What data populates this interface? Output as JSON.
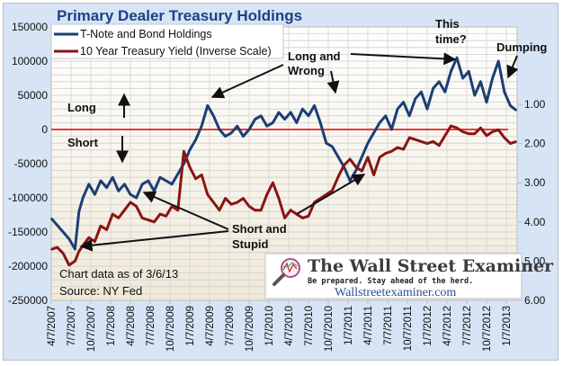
{
  "chart_data": {
    "type": "line",
    "title": "Primary Dealer Treasury Holdings",
    "legend": {
      "placement": "top-left",
      "entries": [
        {
          "name": "T-Note and Bond Holdings",
          "color": "#1b3f73",
          "axis": "left"
        },
        {
          "name": "10 Year Treasury Yield (Inverse Scale)",
          "color": "#8b1414",
          "axis": "right"
        }
      ]
    },
    "left_axis": {
      "ticks": [
        150000,
        100000,
        50000,
        0,
        -50000,
        -100000,
        -150000,
        -200000,
        -250000
      ],
      "range": [
        -250000,
        150000
      ]
    },
    "right_axis": {
      "inverted": true,
      "ticks": [
        "1.00",
        "2.00",
        "3.00",
        "4.00",
        "5.00",
        "6.00"
      ],
      "tick_values": [
        1,
        2,
        3,
        4,
        5,
        6
      ]
    },
    "x_tick_labels": [
      "4/7/2007",
      "7/7/2007",
      "10/7/2007",
      "1/7/2008",
      "4/7/2008",
      "7/7/2008",
      "10/7/2008",
      "1/7/2009",
      "4/7/2009",
      "7/7/2009",
      "10/7/2009",
      "1/7/2010",
      "4/7/2010",
      "7/7/2010",
      "10/7/2010",
      "1/7/2011",
      "4/7/2011",
      "7/7/2011",
      "10/7/2011",
      "1/7/2012",
      "4/7/2012",
      "7/7/2012",
      "10/7/2012",
      "1/7/2013"
    ],
    "grid": true,
    "zero_line_color": "#e83b3b",
    "series": [
      {
        "name": "T-Note and Bond Holdings",
        "x_quarters": [
          0,
          0.3,
          0.6,
          0.9,
          1.2,
          1.4,
          1.6,
          1.9,
          2.2,
          2.5,
          2.8,
          3.1,
          3.4,
          3.7,
          4.0,
          4.3,
          4.6,
          4.9,
          5.2,
          5.5,
          5.8,
          6.1,
          6.4,
          6.7,
          7.0,
          7.3,
          7.6,
          7.9,
          8.2,
          8.5,
          8.8,
          9.1,
          9.4,
          9.7,
          10.0,
          10.3,
          10.6,
          10.9,
          11.2,
          11.5,
          11.8,
          12.1,
          12.4,
          12.7,
          13.0,
          13.3,
          13.6,
          13.9,
          14.2,
          14.5,
          14.8,
          15.1,
          15.4,
          15.7,
          16.0,
          16.3,
          16.6,
          16.9,
          17.2,
          17.5,
          17.8,
          18.1,
          18.4,
          18.7,
          19.0,
          19.3,
          19.6,
          19.9,
          20.2,
          20.5,
          20.8,
          21.1,
          21.4,
          21.7,
          22.0,
          22.3,
          22.6,
          22.9,
          23.2,
          23.5
        ],
        "values": [
          -130000,
          -140000,
          -150000,
          -160000,
          -175000,
          -120000,
          -100000,
          -80000,
          -95000,
          -75000,
          -85000,
          -70000,
          -90000,
          -80000,
          -95000,
          -100000,
          -80000,
          -75000,
          -90000,
          -70000,
          -75000,
          -80000,
          -65000,
          -50000,
          -30000,
          -15000,
          5000,
          35000,
          20000,
          0,
          -10000,
          -5000,
          5000,
          -10000,
          0,
          15000,
          20000,
          5000,
          10000,
          25000,
          15000,
          25000,
          10000,
          30000,
          20000,
          35000,
          10000,
          -20000,
          -25000,
          -40000,
          -55000,
          -75000,
          -60000,
          -40000,
          -20000,
          -5000,
          10000,
          20000,
          0,
          30000,
          40000,
          20000,
          45000,
          55000,
          30000,
          60000,
          70000,
          55000,
          85000,
          105000,
          75000,
          85000,
          50000,
          70000,
          40000,
          75000,
          100000,
          55000,
          35000,
          28000
        ],
        "color": "#1b3f73"
      },
      {
        "name": "10 Year Treasury Yield (Inverse Scale)",
        "x_quarters": [
          0,
          0.3,
          0.6,
          0.9,
          1.2,
          1.4,
          1.6,
          1.9,
          2.2,
          2.5,
          2.8,
          3.1,
          3.4,
          3.7,
          4.0,
          4.3,
          4.6,
          4.9,
          5.2,
          5.5,
          5.8,
          6.1,
          6.4,
          6.7,
          7.0,
          7.3,
          7.6,
          7.9,
          8.2,
          8.5,
          8.8,
          9.1,
          9.4,
          9.7,
          10.0,
          10.3,
          10.6,
          10.9,
          11.2,
          11.5,
          11.8,
          12.1,
          12.4,
          12.7,
          13.0,
          13.3,
          13.6,
          13.9,
          14.2,
          14.5,
          14.8,
          15.1,
          15.4,
          15.7,
          16.0,
          16.3,
          16.6,
          16.9,
          17.2,
          17.5,
          17.8,
          18.1,
          18.4,
          18.7,
          19.0,
          19.3,
          19.6,
          19.9,
          20.2,
          20.5,
          20.8,
          21.1,
          21.4,
          21.7,
          22.0,
          22.3,
          22.6,
          22.9,
          23.2,
          23.5
        ],
        "values": [
          4.7,
          4.65,
          4.8,
          5.1,
          5.0,
          4.75,
          4.6,
          4.4,
          4.5,
          4.1,
          4.2,
          3.8,
          3.9,
          3.7,
          3.5,
          3.6,
          3.9,
          3.95,
          4.0,
          3.8,
          3.85,
          3.6,
          3.7,
          2.2,
          2.6,
          2.9,
          2.8,
          3.3,
          3.5,
          3.7,
          3.4,
          3.55,
          3.5,
          3.4,
          3.6,
          3.7,
          3.7,
          3.3,
          3.0,
          3.4,
          3.9,
          3.7,
          3.8,
          3.9,
          3.85,
          3.5,
          3.4,
          3.3,
          3.2,
          2.85,
          2.55,
          2.4,
          2.6,
          2.7,
          2.35,
          2.8,
          2.35,
          2.25,
          2.2,
          2.1,
          2.15,
          1.85,
          1.9,
          1.95,
          2.0,
          1.95,
          2.05,
          1.8,
          1.55,
          1.6,
          1.7,
          1.75,
          1.75,
          1.6,
          1.8,
          1.7,
          1.65,
          1.85,
          2.0,
          1.95
        ],
        "color": "#8b1414"
      }
    ],
    "annotations": [
      {
        "text": "Long",
        "marker": "up-arrow"
      },
      {
        "text": "Short",
        "marker": "down-arrow"
      },
      {
        "text": "Long and",
        "line2": "Wrong"
      },
      {
        "text": "This",
        "line2": "time?"
      },
      {
        "text": "Dumping"
      },
      {
        "text": "Short  and",
        "line2": "Stupid"
      }
    ],
    "notes": [
      "Chart data as of 3/6/13",
      "Source: NY Fed"
    ]
  },
  "watermark": {
    "title": "The Wall Street Examiner",
    "tagline": "Be prepared. Stay ahead of the herd.",
    "url": "Wallstreetexaminer.com"
  }
}
